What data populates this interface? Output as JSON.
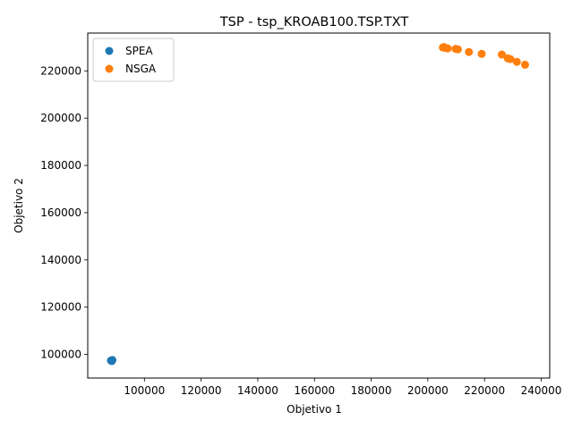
{
  "chart_data": {
    "type": "scatter",
    "title": "TSP - tsp_KROAB100.TSP.TXT",
    "xlabel": "Objetivo 1",
    "ylabel": "Objetivo 2",
    "xlim": [
      80000,
      243000
    ],
    "ylim": [
      90000,
      236000
    ],
    "xticks": [
      100000,
      120000,
      140000,
      160000,
      180000,
      200000,
      220000,
      240000
    ],
    "yticks": [
      100000,
      120000,
      140000,
      160000,
      180000,
      200000,
      220000
    ],
    "grid": false,
    "legend": "top-left",
    "series": [
      {
        "name": "SPEA",
        "color": "#1f77b4",
        "points": [
          [
            88200,
            97400
          ],
          [
            88500,
            97200
          ],
          [
            88700,
            97600
          ]
        ]
      },
      {
        "name": "NSGA",
        "color": "#ff7f0e",
        "points": [
          [
            205300,
            229900
          ],
          [
            205600,
            230100
          ],
          [
            206200,
            229700
          ],
          [
            207000,
            229500
          ],
          [
            209800,
            229300
          ],
          [
            210600,
            229100
          ],
          [
            214500,
            228000
          ],
          [
            219000,
            227200
          ],
          [
            226100,
            226900
          ],
          [
            228200,
            225300
          ],
          [
            229100,
            225000
          ],
          [
            231400,
            223800
          ],
          [
            234300,
            222600
          ]
        ]
      }
    ]
  }
}
